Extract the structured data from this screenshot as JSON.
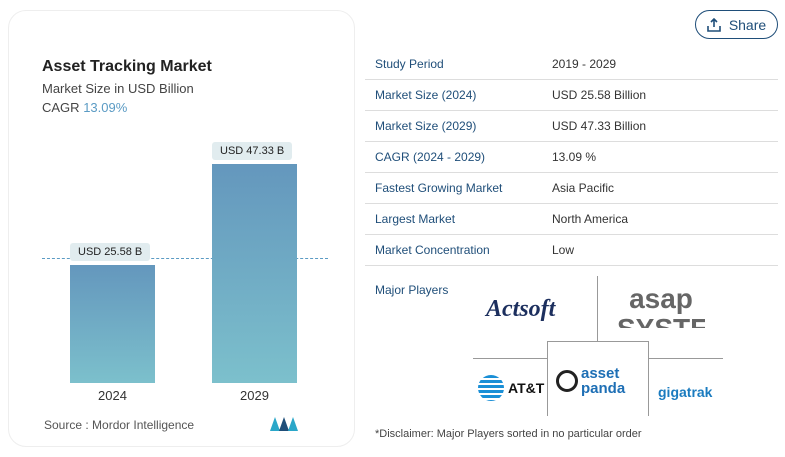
{
  "share": {
    "label": "Share",
    "icon": "share-icon"
  },
  "chart_data": {
    "type": "bar",
    "title": "Asset Tracking Market",
    "subtitle": "Market Size in USD Billion",
    "cagr_label": "CAGR",
    "cagr_value": "13.09%",
    "categories": [
      "2024",
      "2029"
    ],
    "values": [
      25.58,
      47.33
    ],
    "data_labels": [
      "USD 25.58 B",
      "USD 47.33 B"
    ],
    "ylim": [
      0,
      50
    ]
  },
  "source": "Source :  Mordor Intelligence",
  "table": [
    {
      "k": "Study Period",
      "v": "2019 - 2029"
    },
    {
      "k": "Market Size (2024)",
      "v": "USD 25.58 Billion"
    },
    {
      "k": "Market Size (2029)",
      "v": "USD 47.33 Billion"
    },
    {
      "k": "CAGR (2024 - 2029)",
      "v": "13.09 %"
    },
    {
      "k": "Fastest Growing Market",
      "v": "Asia Pacific"
    },
    {
      "k": "Largest Market",
      "v": "North America"
    },
    {
      "k": "Market Concentration",
      "v": "Low"
    }
  ],
  "major_players_label": "Major Players",
  "players": [
    "Actsoft",
    "asap SYSTEMS",
    "AT&T",
    "asset panda",
    "gigatrak"
  ],
  "disclaimer": "*Disclaimer: Major Players sorted in no particular order"
}
